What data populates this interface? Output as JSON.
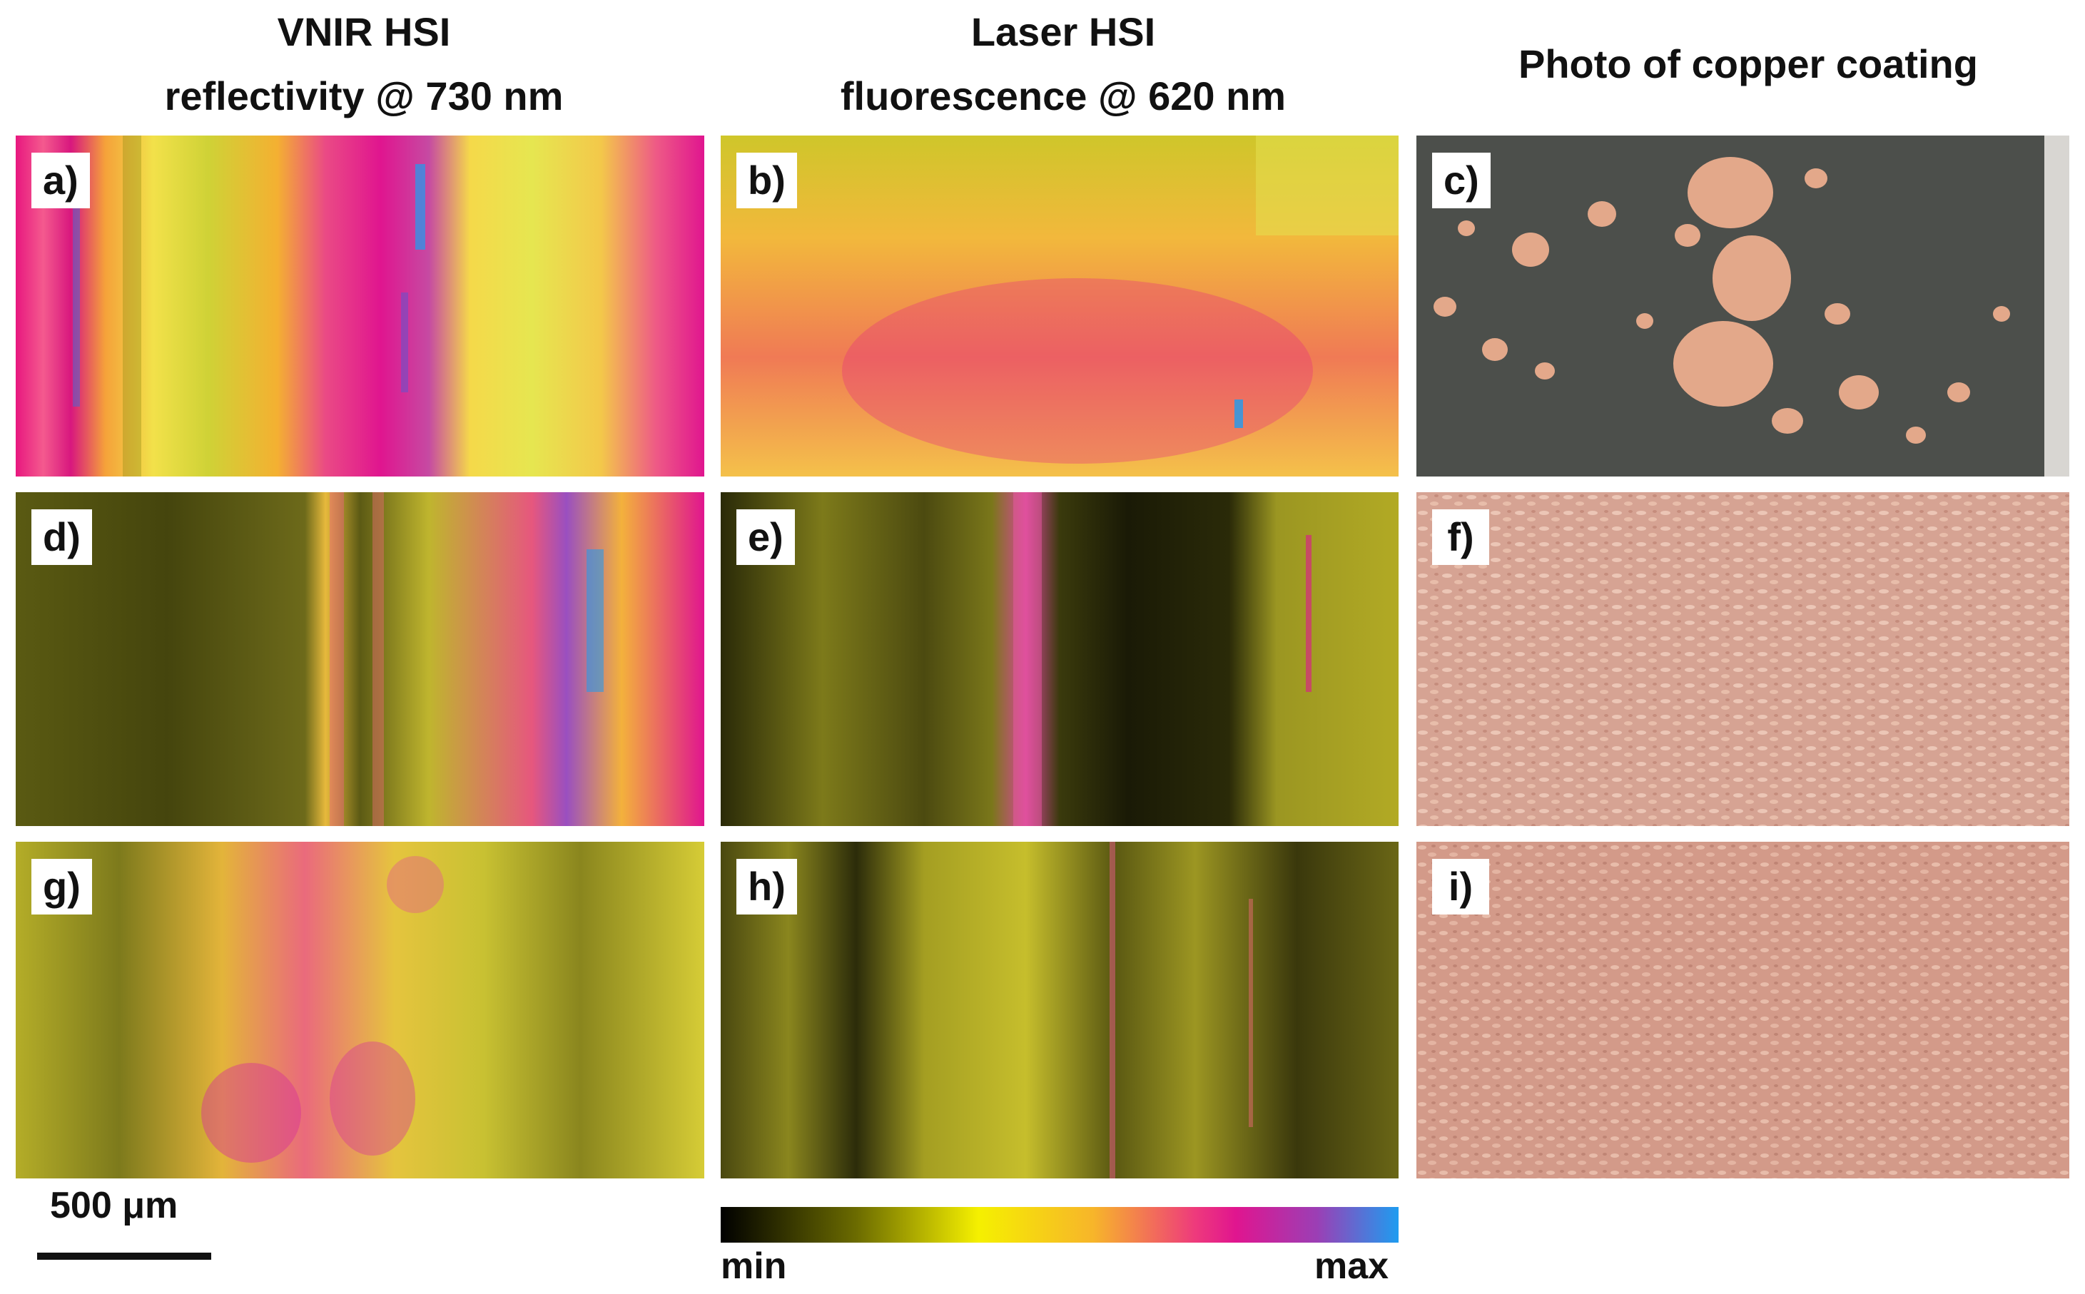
{
  "headings": {
    "col1_line1": "VNIR HSI",
    "col1_line2": "reflectivity @ 730 nm",
    "col2_line1": "Laser HSI",
    "col2_line2": "fluorescence @ 620 nm",
    "col3": "Photo of copper coating"
  },
  "panels": {
    "a": "a)",
    "b": "b)",
    "c": "c)",
    "d": "d)",
    "e": "e)",
    "f": "f)",
    "g": "g)",
    "h": "h)",
    "i": "i)"
  },
  "scale_bar": {
    "label": "500 μm"
  },
  "colorbar": {
    "min": "min",
    "max": "max",
    "colors": [
      "#000000",
      "#6b6b00",
      "#f5f000",
      "#f7b52a",
      "#ee3a7c",
      "#e0158f",
      "#9b3fb5",
      "#1e9cf0"
    ]
  }
}
